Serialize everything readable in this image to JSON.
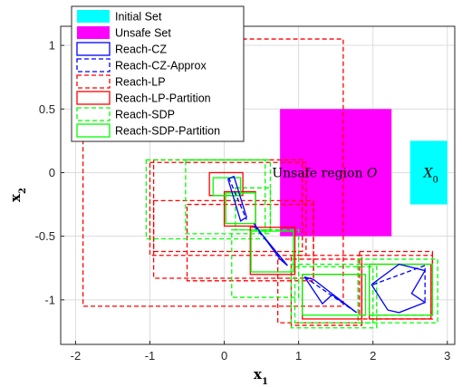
{
  "chart_data": {
    "type": "line",
    "title": "",
    "xlabel": "x",
    "xlabel_sub": "1",
    "ylabel": "x",
    "ylabel_sub": "2",
    "xlim": [
      -2.2,
      3.1
    ],
    "ylim": [
      -1.35,
      1.15
    ],
    "xticks": [
      -2,
      -1,
      0,
      1,
      2,
      3
    ],
    "xtick_labels": [
      "-2",
      "-1",
      "0",
      "1",
      "2",
      "3"
    ],
    "yticks": [
      -1,
      -0.5,
      0,
      0.5,
      1
    ],
    "ytick_labels": [
      "-1",
      "-0.5",
      "0",
      "0.5",
      "1"
    ],
    "grid": true,
    "legend_position": "top-left",
    "legend": [
      {
        "label": "Initial Set",
        "style": "filled",
        "color": "#00ffff"
      },
      {
        "label": "Unsafe Set",
        "style": "filled",
        "color": "#ff00ff"
      },
      {
        "label": "Reach-CZ",
        "style": "solid",
        "color": "#0000ff"
      },
      {
        "label": "Reach-CZ-Approx",
        "style": "dashed",
        "color": "#0000ff"
      },
      {
        "label": "Reach-LP",
        "style": "dashed",
        "color": "#ff0000"
      },
      {
        "label": "Reach-LP-Partition",
        "style": "solid",
        "color": "#ff0000"
      },
      {
        "label": "Reach-SDP",
        "style": "dashed",
        "color": "#00ff00"
      },
      {
        "label": "Reach-SDP-Partition",
        "style": "solid",
        "color": "#00ff00"
      }
    ],
    "annotations": [
      {
        "text": "Unsafe region ",
        "math": "O",
        "x": 1.35,
        "y": 0.0
      },
      {
        "text": "",
        "math": "X",
        "sub": "0",
        "x": 2.78,
        "y": 0.0
      }
    ],
    "filled_regions": [
      {
        "name": "Initial Set",
        "color": "#00ffff",
        "x": [
          2.5,
          3.0
        ],
        "y": [
          -0.25,
          0.25
        ]
      },
      {
        "name": "Unsafe Set",
        "color": "#ff00ff",
        "x": [
          0.75,
          2.25
        ],
        "y": [
          -0.5,
          0.5
        ]
      }
    ],
    "rectangles": [
      {
        "series": "Reach-LP",
        "x": [
          -1.9,
          1.6
        ],
        "y": [
          -1.05,
          1.05
        ]
      },
      {
        "series": "Reach-LP",
        "x": [
          -1.0,
          1.1
        ],
        "y": [
          -0.65,
          0.08
        ]
      },
      {
        "series": "Reach-LP",
        "x": [
          -0.95,
          1.05
        ],
        "y": [
          -0.62,
          0.1
        ]
      },
      {
        "series": "Reach-LP",
        "x": [
          -0.5,
          1.2
        ],
        "y": [
          -0.85,
          -0.25
        ]
      },
      {
        "series": "Reach-LP",
        "x": [
          -0.95,
          1.2
        ],
        "y": [
          -0.83,
          -0.22
        ]
      },
      {
        "series": "Reach-LP",
        "x": [
          0.9,
          1.85
        ],
        "y": [
          -1.2,
          -0.65
        ]
      },
      {
        "series": "Reach-LP",
        "x": [
          0.72,
          1.85
        ],
        "y": [
          -1.18,
          -0.68
        ]
      },
      {
        "series": "Reach-LP",
        "x": [
          1.82,
          2.8
        ],
        "y": [
          -1.12,
          -0.62
        ]
      },
      {
        "series": "Reach-LP",
        "x": [
          1.8,
          2.8
        ],
        "y": [
          -1.15,
          -0.65
        ]
      },
      {
        "series": "Reach-SDP",
        "x": [
          -1.05,
          0.55
        ],
        "y": [
          -0.52,
          0.1
        ]
      },
      {
        "series": "Reach-SDP",
        "x": [
          -0.52,
          0.62
        ],
        "y": [
          -0.48,
          0.1
        ]
      },
      {
        "series": "Reach-SDP",
        "x": [
          0.15,
          0.62
        ],
        "y": [
          -0.45,
          -0.12
        ]
      },
      {
        "series": "Reach-SDP",
        "x": [
          0.1,
          1.0
        ],
        "y": [
          -0.98,
          -0.45
        ]
      },
      {
        "series": "Reach-SDP",
        "x": [
          0.9,
          2.05
        ],
        "y": [
          -1.22,
          -0.72
        ]
      },
      {
        "series": "Reach-SDP",
        "x": [
          0.95,
          2.0
        ],
        "y": [
          -1.18,
          -0.74
        ]
      },
      {
        "series": "Reach-SDP",
        "x": [
          1.8,
          2.87
        ],
        "y": [
          -1.18,
          -0.68
        ]
      },
      {
        "series": "Reach-LP-Partition",
        "x": [
          -0.2,
          0.25
        ],
        "y": [
          -0.18,
          0.0
        ]
      },
      {
        "series": "Reach-LP-Partition",
        "x": [
          0.0,
          0.42
        ],
        "y": [
          -0.42,
          -0.15
        ]
      },
      {
        "series": "Reach-LP-Partition",
        "x": [
          0.35,
          0.95
        ],
        "y": [
          -0.8,
          -0.43
        ]
      },
      {
        "series": "Reach-LP-Partition",
        "x": [
          1.05,
          1.85
        ],
        "y": [
          -1.15,
          -0.8
        ]
      },
      {
        "series": "Reach-LP-Partition",
        "x": [
          1.95,
          2.78
        ],
        "y": [
          -1.15,
          -0.72
        ]
      },
      {
        "series": "Reach-SDP-Partition",
        "x": [
          -0.15,
          0.22
        ],
        "y": [
          -0.18,
          -0.04
        ]
      },
      {
        "series": "Reach-SDP-Partition",
        "x": [
          0.02,
          0.42
        ],
        "y": [
          -0.4,
          -0.16
        ]
      },
      {
        "series": "Reach-SDP-Partition",
        "x": [
          0.36,
          0.93
        ],
        "y": [
          -0.78,
          -0.46
        ]
      },
      {
        "series": "Reach-SDP-Partition",
        "x": [
          1.05,
          1.9
        ],
        "y": [
          -1.12,
          -0.8
        ]
      },
      {
        "series": "Reach-SDP-Partition",
        "x": [
          1.95,
          2.8
        ],
        "y": [
          -1.12,
          -0.72
        ]
      }
    ],
    "polygons": [
      {
        "series": "Reach-CZ",
        "x": [
          0.05,
          0.13,
          0.3,
          0.22,
          0.05
        ],
        "y": [
          -0.05,
          -0.03,
          -0.35,
          -0.38,
          -0.05
        ]
      },
      {
        "series": "Reach-CZ",
        "x": [
          0.4,
          0.5,
          0.85,
          0.75,
          0.4
        ],
        "y": [
          -0.4,
          -0.48,
          -0.73,
          -0.68,
          -0.4
        ]
      },
      {
        "series": "Reach-CZ",
        "x": [
          1.08,
          1.2,
          1.78,
          1.45,
          1.32,
          1.08
        ],
        "y": [
          -0.82,
          -0.84,
          -1.1,
          -0.96,
          -1.03,
          -0.82
        ]
      },
      {
        "series": "Reach-CZ",
        "x": [
          1.98,
          2.35,
          2.7,
          2.52,
          2.7,
          2.35,
          2.2,
          1.98
        ],
        "y": [
          -0.88,
          -0.72,
          -0.77,
          -0.95,
          -1.02,
          -1.1,
          -1.08,
          -0.88
        ]
      },
      {
        "series": "Reach-CZ-Approx",
        "x": [
          0.06,
          0.3
        ],
        "y": [
          -0.04,
          -0.37
        ]
      },
      {
        "series": "Reach-CZ-Approx",
        "x": [
          0.4,
          0.85
        ],
        "y": [
          -0.42,
          -0.73
        ]
      },
      {
        "series": "Reach-CZ-Approx",
        "x": [
          1.08,
          1.78
        ],
        "y": [
          -0.82,
          -1.1
        ]
      },
      {
        "series": "Reach-CZ-Approx",
        "x": [
          2.0,
          2.7,
          2.7
        ],
        "y": [
          -0.88,
          -0.73,
          -1.02
        ]
      }
    ]
  }
}
